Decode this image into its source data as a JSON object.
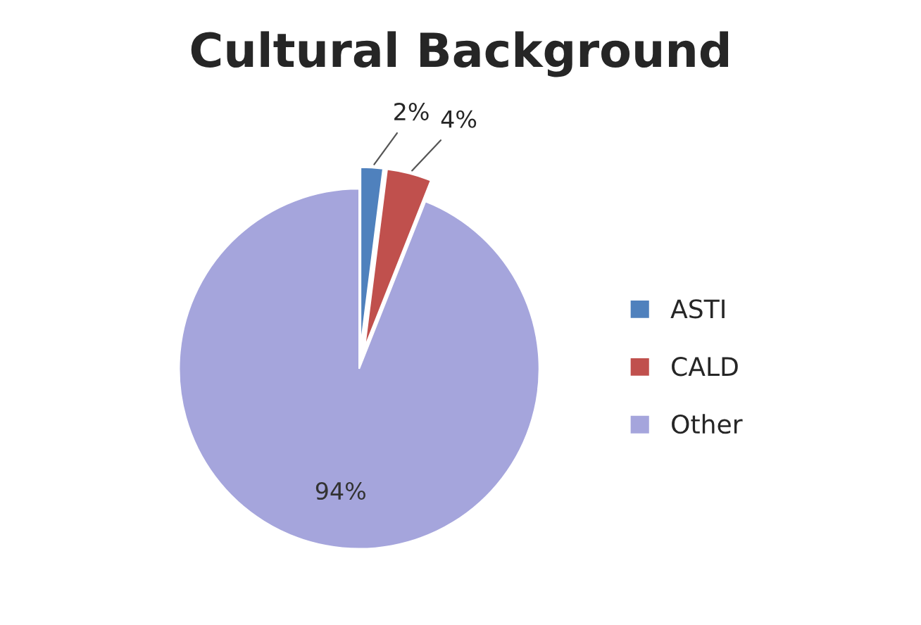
{
  "chart_data": {
    "type": "pie",
    "title": "Cultural Background",
    "categories": [
      "ASTI",
      "CALD",
      "Other"
    ],
    "values": [
      2,
      4,
      94
    ],
    "colors": [
      "#4f81bd",
      "#c0504d",
      "#a5a5dc"
    ],
    "value_labels": [
      "2%",
      "4%",
      "94%"
    ],
    "legend": "right"
  }
}
